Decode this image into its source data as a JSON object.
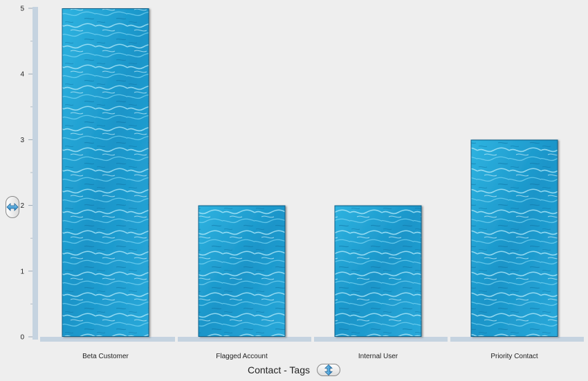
{
  "chart_data": {
    "type": "bar",
    "categories": [
      "Beta Customer",
      "Flagged Account",
      "Internal User",
      "Priority Contact"
    ],
    "values": [
      5,
      2,
      2,
      3
    ],
    "xlabel": "Contact - Tags",
    "ylabel": "",
    "ylim": [
      0,
      5
    ],
    "yticks": [
      "0",
      "1",
      "2",
      "3",
      "4",
      "5"
    ],
    "grid": false,
    "bar_fill": "water-texture",
    "colors": {
      "bar": "#1d9ccc",
      "bar_light": "#7fd8f4",
      "bar_dark": "#0a6f9e",
      "axis": "#c5d3e0",
      "background": "#eeeeee"
    }
  },
  "controls": {
    "x_axis_toggle_icon": "vertical-double-arrow-icon",
    "y_axis_toggle_icon": "horizontal-double-arrow-icon"
  }
}
